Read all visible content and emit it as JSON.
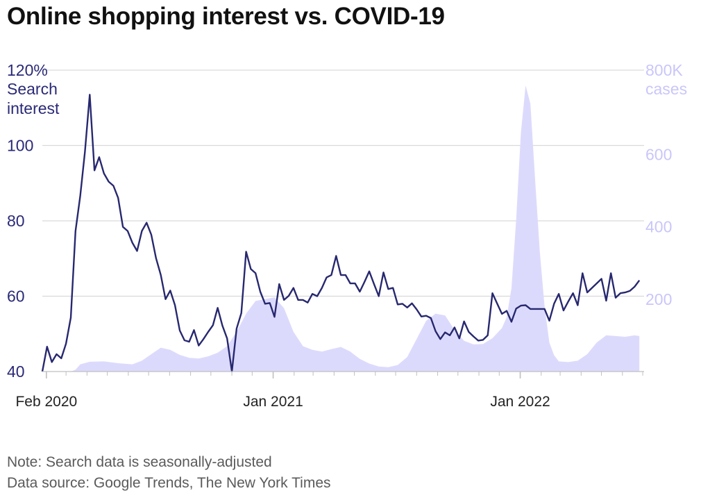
{
  "title": "Online shopping interest vs. COVID-19",
  "notes": {
    "note": "Note: Search data is seasonally-adjusted",
    "source": "Data source: Google Trends, The New York Times"
  },
  "colors": {
    "search_line": "#27286f",
    "cases_area": "#dcdafc",
    "left_axis_text": "#2a2a78",
    "right_axis_text": "#c9c6fa",
    "gridline": "#d9d9d9",
    "x_axis_text": "#222222"
  },
  "chart_data": {
    "type": "line",
    "title": "Online shopping interest vs. COVID-19",
    "x_ticks": [
      "Feb 2020",
      "Jan 2021",
      "Jan 2022"
    ],
    "y_left": {
      "label_top": "120%",
      "label_lines": [
        "Search",
        "interest"
      ],
      "ticks": [
        "40",
        "60",
        "80",
        "100"
      ],
      "range": [
        40,
        120
      ]
    },
    "y_right": {
      "label_top": "800K",
      "label_lines": [
        "cases"
      ],
      "ticks": [
        "200",
        "400",
        "600"
      ],
      "range": [
        0,
        800
      ]
    },
    "grid": true,
    "series": [
      {
        "name": "Search interest",
        "axis": "left",
        "chart": "line",
        "values": [
          [
            "2020-01-26",
            40
          ],
          [
            "2020-02-02",
            46.6
          ],
          [
            "2020-02-09",
            42.5
          ],
          [
            "2020-02-16",
            44.6
          ],
          [
            "2020-02-23",
            43.5
          ],
          [
            "2020-03-01",
            47.4
          ],
          [
            "2020-03-08",
            54.3
          ],
          [
            "2020-03-15",
            77.3
          ],
          [
            "2020-03-22",
            86.6
          ],
          [
            "2020-03-29",
            98.4
          ],
          [
            "2020-04-05",
            113.5
          ],
          [
            "2020-04-12",
            93.4
          ],
          [
            "2020-04-19",
            96.9
          ],
          [
            "2020-04-26",
            92.6
          ],
          [
            "2020-05-03",
            90.4
          ],
          [
            "2020-05-10",
            89.3
          ],
          [
            "2020-05-17",
            86.1
          ],
          [
            "2020-05-24",
            78.4
          ],
          [
            "2020-05-31",
            77.3
          ],
          [
            "2020-06-07",
            74.2
          ],
          [
            "2020-06-14",
            72.0
          ],
          [
            "2020-06-21",
            77.3
          ],
          [
            "2020-06-28",
            79.5
          ],
          [
            "2020-07-05",
            76.3
          ],
          [
            "2020-07-12",
            70.1
          ],
          [
            "2020-07-19",
            65.6
          ],
          [
            "2020-07-26",
            59.2
          ],
          [
            "2020-08-02",
            61.5
          ],
          [
            "2020-08-09",
            57.6
          ],
          [
            "2020-08-16",
            50.9
          ],
          [
            "2020-08-23",
            48.3
          ],
          [
            "2020-08-30",
            47.9
          ],
          [
            "2020-09-06",
            51.0
          ],
          [
            "2020-09-13",
            46.9
          ],
          [
            "2020-09-20",
            48.6
          ],
          [
            "2020-09-27",
            50.5
          ],
          [
            "2020-10-04",
            52.3
          ],
          [
            "2020-10-11",
            56.9
          ],
          [
            "2020-10-18",
            52.2
          ],
          [
            "2020-10-25",
            48.8
          ],
          [
            "2020-11-01",
            40.0
          ],
          [
            "2020-11-08",
            51.4
          ],
          [
            "2020-11-15",
            55.5
          ],
          [
            "2020-11-22",
            71.8
          ],
          [
            "2020-11-29",
            67.2
          ],
          [
            "2020-12-06",
            66.1
          ],
          [
            "2020-12-13",
            61.2
          ],
          [
            "2020-12-20",
            58.0
          ],
          [
            "2020-12-27",
            58.2
          ],
          [
            "2021-01-03",
            54.5
          ],
          [
            "2021-01-10",
            63.2
          ],
          [
            "2021-01-17",
            59.0
          ],
          [
            "2021-01-24",
            60.1
          ],
          [
            "2021-01-31",
            62.2
          ],
          [
            "2021-02-07",
            59.0
          ],
          [
            "2021-02-14",
            59.0
          ],
          [
            "2021-02-21",
            58.3
          ],
          [
            "2021-02-28",
            60.6
          ],
          [
            "2021-03-07",
            60.0
          ],
          [
            "2021-03-14",
            62.2
          ],
          [
            "2021-03-21",
            65.0
          ],
          [
            "2021-03-28",
            65.6
          ],
          [
            "2021-04-04",
            70.7
          ],
          [
            "2021-04-11",
            65.6
          ],
          [
            "2021-04-18",
            65.6
          ],
          [
            "2021-04-25",
            63.4
          ],
          [
            "2021-05-02",
            63.4
          ],
          [
            "2021-05-09",
            61.2
          ],
          [
            "2021-05-16",
            63.8
          ],
          [
            "2021-05-23",
            66.6
          ],
          [
            "2021-05-30",
            63.2
          ],
          [
            "2021-06-06",
            60.0
          ],
          [
            "2021-06-13",
            66.3
          ],
          [
            "2021-06-20",
            61.9
          ],
          [
            "2021-06-27",
            62.2
          ],
          [
            "2021-07-04",
            57.8
          ],
          [
            "2021-07-11",
            58.0
          ],
          [
            "2021-07-18",
            57.0
          ],
          [
            "2021-07-25",
            58.1
          ],
          [
            "2021-08-01",
            56.5
          ],
          [
            "2021-08-08",
            54.6
          ],
          [
            "2021-08-15",
            54.8
          ],
          [
            "2021-08-22",
            54.2
          ],
          [
            "2021-08-29",
            50.7
          ],
          [
            "2021-09-05",
            48.6
          ],
          [
            "2021-09-12",
            50.4
          ],
          [
            "2021-09-19",
            49.6
          ],
          [
            "2021-09-26",
            51.7
          ],
          [
            "2021-10-03",
            48.8
          ],
          [
            "2021-10-10",
            53.3
          ],
          [
            "2021-10-17",
            50.5
          ],
          [
            "2021-10-24",
            49.3
          ],
          [
            "2021-10-31",
            48.2
          ],
          [
            "2021-11-07",
            48.4
          ],
          [
            "2021-11-14",
            49.6
          ],
          [
            "2021-11-21",
            60.8
          ],
          [
            "2021-11-28",
            58.0
          ],
          [
            "2021-12-05",
            55.3
          ],
          [
            "2021-12-12",
            56.1
          ],
          [
            "2021-12-19",
            53.2
          ],
          [
            "2021-12-26",
            56.7
          ],
          [
            "2022-01-02",
            57.5
          ],
          [
            "2022-01-09",
            57.6
          ],
          [
            "2022-01-16",
            56.6
          ],
          [
            "2022-01-23",
            56.6
          ],
          [
            "2022-01-30",
            56.6
          ],
          [
            "2022-02-06",
            56.6
          ],
          [
            "2022-02-13",
            53.5
          ],
          [
            "2022-02-20",
            58.0
          ],
          [
            "2022-02-27",
            60.6
          ],
          [
            "2022-03-06",
            56.2
          ],
          [
            "2022-03-13",
            58.6
          ],
          [
            "2022-03-20",
            60.8
          ],
          [
            "2022-03-27",
            57.6
          ],
          [
            "2022-04-03",
            66.1
          ],
          [
            "2022-04-10",
            61.0
          ],
          [
            "2022-04-17",
            62.2
          ],
          [
            "2022-04-24",
            63.4
          ],
          [
            "2022-05-01",
            64.6
          ],
          [
            "2022-05-08",
            58.8
          ],
          [
            "2022-05-15",
            66.1
          ],
          [
            "2022-05-22",
            59.6
          ],
          [
            "2022-05-29",
            60.8
          ],
          [
            "2022-06-05",
            61.0
          ],
          [
            "2022-06-12",
            61.4
          ],
          [
            "2022-06-19",
            62.5
          ],
          [
            "2022-06-26",
            64.2
          ]
        ]
      },
      {
        "name": "cases",
        "axis": "right",
        "chart": "area",
        "values": [
          [
            "2020-01-26",
            0
          ],
          [
            "2020-02-23",
            0
          ],
          [
            "2020-03-08",
            0
          ],
          [
            "2020-03-15",
            5
          ],
          [
            "2020-03-22",
            20
          ],
          [
            "2020-04-05",
            27
          ],
          [
            "2020-04-26",
            28
          ],
          [
            "2020-05-17",
            23
          ],
          [
            "2020-06-07",
            20
          ],
          [
            "2020-06-21",
            30
          ],
          [
            "2020-07-05",
            48
          ],
          [
            "2020-07-19",
            66
          ],
          [
            "2020-08-02",
            60
          ],
          [
            "2020-08-16",
            46
          ],
          [
            "2020-08-30",
            38
          ],
          [
            "2020-09-13",
            36
          ],
          [
            "2020-09-27",
            42
          ],
          [
            "2020-10-11",
            52
          ],
          [
            "2020-10-25",
            70
          ],
          [
            "2020-11-08",
            110
          ],
          [
            "2020-11-22",
            160
          ],
          [
            "2020-12-06",
            195
          ],
          [
            "2020-12-20",
            200
          ],
          [
            "2021-01-03",
            205
          ],
          [
            "2021-01-17",
            175
          ],
          [
            "2021-01-31",
            110
          ],
          [
            "2021-02-14",
            70
          ],
          [
            "2021-02-28",
            60
          ],
          [
            "2021-03-14",
            55
          ],
          [
            "2021-03-28",
            62
          ],
          [
            "2021-04-11",
            68
          ],
          [
            "2021-04-25",
            55
          ],
          [
            "2021-05-09",
            35
          ],
          [
            "2021-05-23",
            22
          ],
          [
            "2021-06-06",
            14
          ],
          [
            "2021-06-20",
            12
          ],
          [
            "2021-07-04",
            18
          ],
          [
            "2021-07-18",
            40
          ],
          [
            "2021-08-01",
            90
          ],
          [
            "2021-08-15",
            140
          ],
          [
            "2021-08-29",
            160
          ],
          [
            "2021-09-12",
            155
          ],
          [
            "2021-09-26",
            115
          ],
          [
            "2021-10-10",
            85
          ],
          [
            "2021-10-24",
            75
          ],
          [
            "2021-11-07",
            76
          ],
          [
            "2021-11-21",
            92
          ],
          [
            "2021-12-05",
            120
          ],
          [
            "2021-12-12",
            150
          ],
          [
            "2021-12-19",
            230
          ],
          [
            "2021-12-26",
            420
          ],
          [
            "2022-01-02",
            660
          ],
          [
            "2022-01-09",
            790
          ],
          [
            "2022-01-16",
            740
          ],
          [
            "2022-01-23",
            530
          ],
          [
            "2022-01-30",
            330
          ],
          [
            "2022-02-06",
            180
          ],
          [
            "2022-02-13",
            80
          ],
          [
            "2022-02-20",
            45
          ],
          [
            "2022-02-27",
            28
          ],
          [
            "2022-03-13",
            26
          ],
          [
            "2022-03-27",
            30
          ],
          [
            "2022-04-10",
            48
          ],
          [
            "2022-04-24",
            80
          ],
          [
            "2022-05-08",
            100
          ],
          [
            "2022-05-22",
            98
          ],
          [
            "2022-06-05",
            96
          ],
          [
            "2022-06-19",
            100
          ],
          [
            "2022-06-26",
            98
          ]
        ]
      }
    ]
  }
}
